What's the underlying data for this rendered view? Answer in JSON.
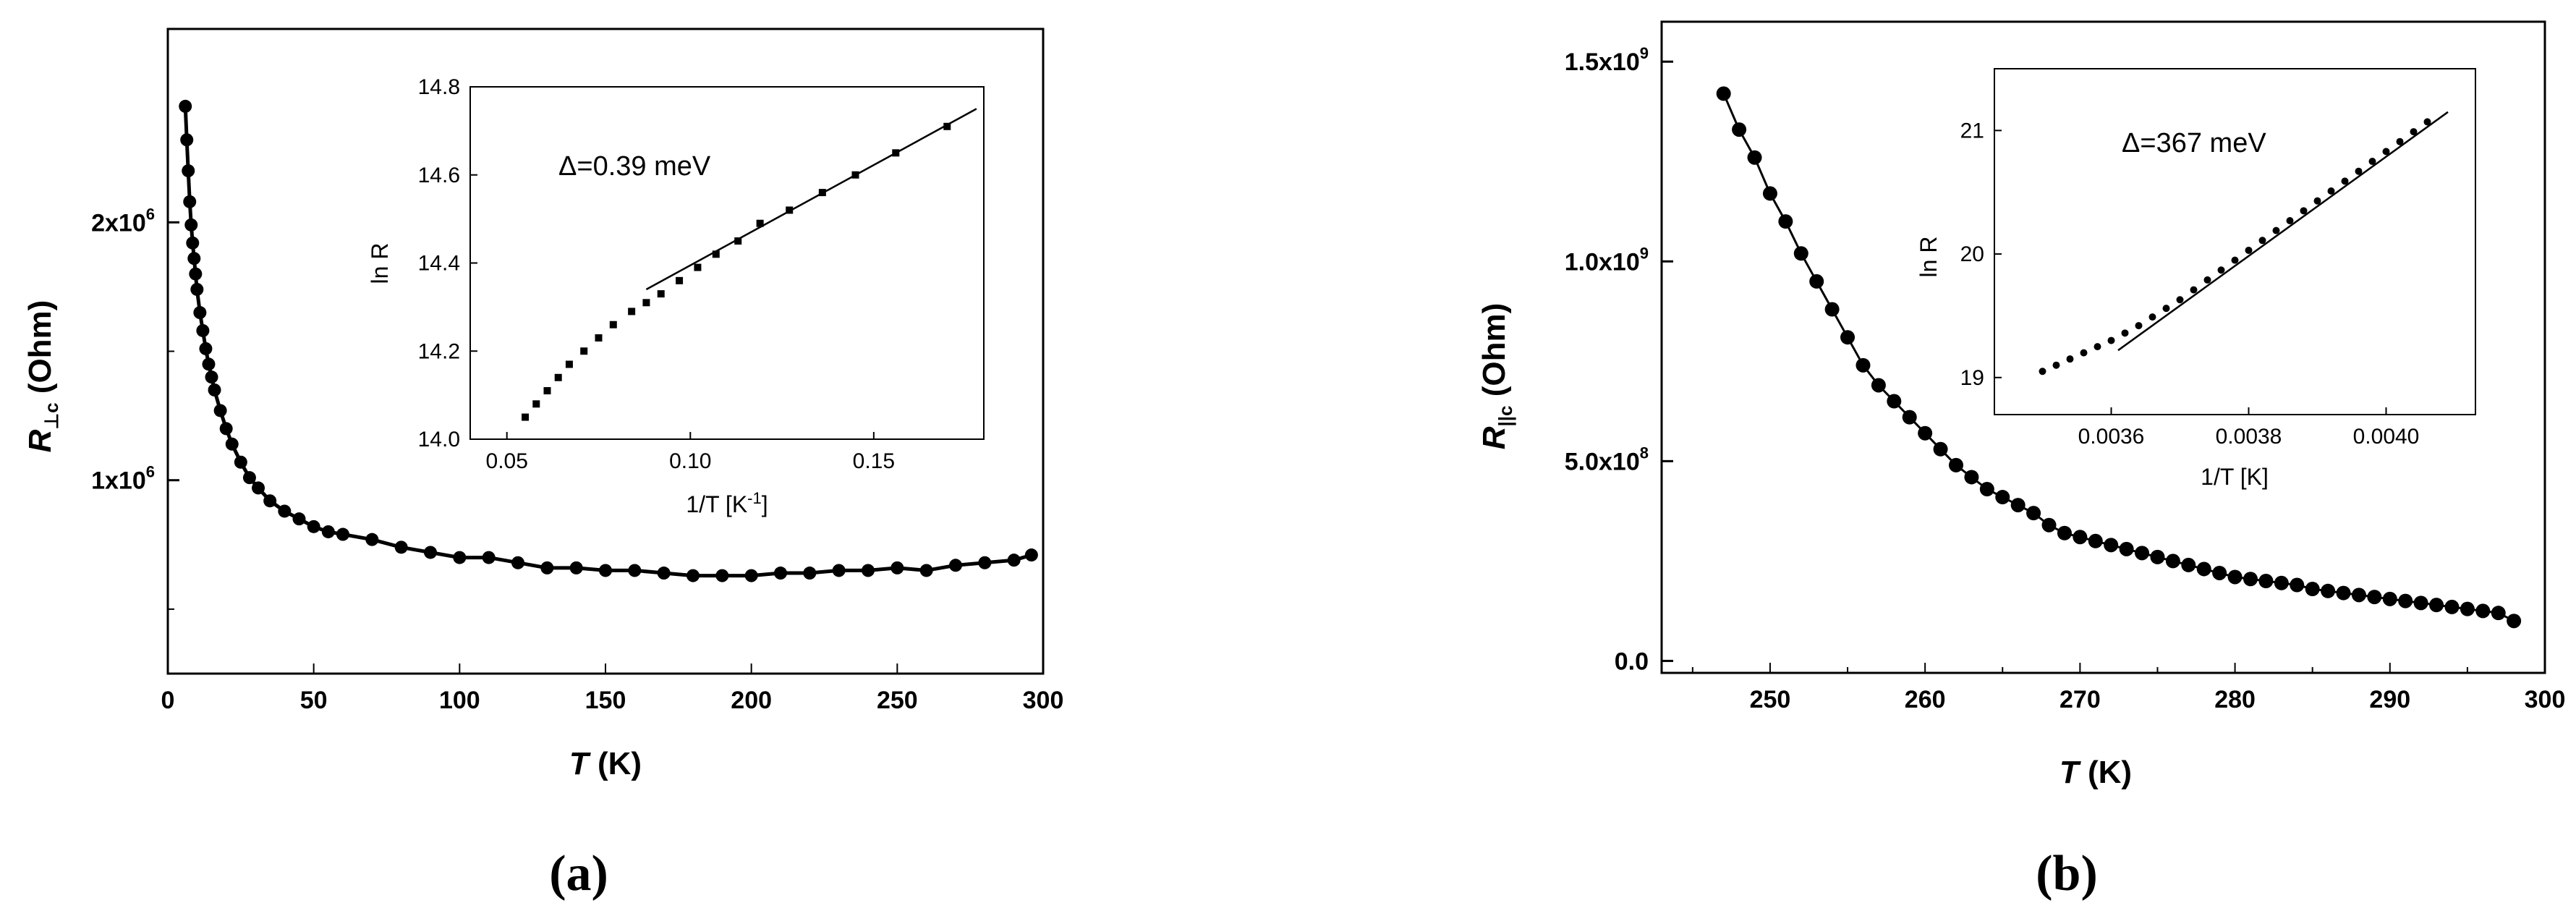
{
  "panels": [
    {
      "label": "(a)",
      "main": {
        "xlabel_italic": "T",
        "xlabel_rest": " (K)",
        "ylabel_symbol": "R",
        "ylabel_subscript": "⊥c",
        "ylabel_rest": " (Ohm)",
        "xlim": [
          0,
          300
        ],
        "ylim": [
          250000,
          2750000
        ],
        "xticks": [
          {
            "v": 0,
            "t": "0"
          },
          {
            "v": 50,
            "t": "50"
          },
          {
            "v": 100,
            "t": "100"
          },
          {
            "v": 150,
            "t": "150"
          },
          {
            "v": 200,
            "t": "200"
          },
          {
            "v": 250,
            "t": "250"
          },
          {
            "v": 300,
            "t": "300"
          }
        ],
        "yticks": [
          {
            "v": 1000000,
            "base": "1x10",
            "exp": "6"
          },
          {
            "v": 2000000,
            "base": "2x10",
            "exp": "6"
          }
        ],
        "yminor": [
          500000,
          1500000
        ]
      },
      "inset": {
        "xlabel": "1/T [K",
        "xlabel_sup": "-1",
        "xlabel_close": "]",
        "ylabel": "ln R",
        "xlim": [
          0.04,
          0.18
        ],
        "ylim": [
          14.0,
          14.8
        ],
        "xticks": [
          {
            "v": 0.05,
            "t": "0.05"
          },
          {
            "v": 0.1,
            "t": "0.10"
          },
          {
            "v": 0.15,
            "t": "0.15"
          }
        ],
        "yticks": [
          {
            "v": 14.0,
            "t": "14.0"
          },
          {
            "v": 14.2,
            "t": "14.2"
          },
          {
            "v": 14.4,
            "t": "14.4"
          },
          {
            "v": 14.6,
            "t": "14.6"
          },
          {
            "v": 14.8,
            "t": "14.8"
          }
        ],
        "annotation": "Δ=0.39  meV"
      }
    },
    {
      "label": "(b)",
      "main": {
        "xlabel_italic": "T",
        "xlabel_rest": " (K)",
        "ylabel_symbol": "R",
        "ylabel_subscript": "||c",
        "ylabel_rest": " (Ohm)",
        "xlim": [
          243,
          300
        ],
        "ylim": [
          -30000000,
          1600000000
        ],
        "xticks": [
          {
            "v": 250,
            "t": "250"
          },
          {
            "v": 260,
            "t": "260"
          },
          {
            "v": 270,
            "t": "270"
          },
          {
            "v": 280,
            "t": "280"
          },
          {
            "v": 290,
            "t": "290"
          },
          {
            "v": 300,
            "t": "300"
          }
        ],
        "yticks": [
          {
            "v": 0,
            "base": "0.0",
            "exp": ""
          },
          {
            "v": 500000000,
            "base": "5.0x10",
            "exp": "8"
          },
          {
            "v": 1000000000,
            "base": "1.0x10",
            "exp": "9"
          },
          {
            "v": 1500000000,
            "base": "1.5x10",
            "exp": "9"
          }
        ]
      },
      "inset": {
        "xlabel": "1/T [K]",
        "ylabel": "ln R",
        "xlim": [
          0.00343,
          0.00413
        ],
        "ylim": [
          18.7,
          21.5
        ],
        "xticks": [
          {
            "v": 0.0036,
            "t": "0.0036"
          },
          {
            "v": 0.0038,
            "t": "0.0038"
          },
          {
            "v": 0.004,
            "t": "0.0040"
          }
        ],
        "yticks": [
          {
            "v": 19,
            "t": "19"
          },
          {
            "v": 20,
            "t": "20"
          },
          {
            "v": 21,
            "t": "21"
          }
        ],
        "annotation": "Δ=367 meV"
      }
    }
  ],
  "chart_data": [
    {
      "type": "scatter",
      "panel": "(a)",
      "xlabel": "T (K)",
      "ylabel": "R⊥c (Ohm)",
      "series": [
        {
          "x": [
            6,
            6.5,
            7,
            7.5,
            8,
            8.5,
            9,
            9.5,
            10,
            11,
            12,
            13,
            14,
            15,
            16,
            18,
            20,
            22,
            25,
            28,
            31,
            35,
            40,
            45,
            50,
            55,
            60,
            70,
            80,
            90,
            100,
            110,
            120,
            130,
            140,
            150,
            160,
            170,
            180,
            190,
            200,
            210,
            220,
            230,
            240,
            250,
            260,
            270,
            280,
            290,
            296
          ],
          "y": [
            2450000,
            2320000,
            2200000,
            2080000,
            1990000,
            1920000,
            1860000,
            1800000,
            1740000,
            1650000,
            1580000,
            1510000,
            1450000,
            1400000,
            1350000,
            1270000,
            1200000,
            1140000,
            1070000,
            1010000,
            970000,
            920000,
            880000,
            850000,
            820000,
            800000,
            790000,
            770000,
            740000,
            720000,
            700000,
            700000,
            680000,
            660000,
            660000,
            650000,
            650000,
            640000,
            630000,
            630000,
            630000,
            640000,
            640000,
            650000,
            650000,
            660000,
            650000,
            670000,
            680000,
            690000,
            710000
          ]
        }
      ],
      "inset": {
        "type": "scatter",
        "xlabel": "1/T [K-1]",
        "ylabel": "ln R",
        "points": {
          "x": [
            0.055,
            0.058,
            0.061,
            0.064,
            0.067,
            0.071,
            0.075,
            0.079,
            0.084,
            0.088,
            0.092,
            0.097,
            0.102,
            0.107,
            0.113,
            0.119,
            0.127,
            0.136,
            0.145,
            0.156,
            0.17
          ],
          "y": [
            14.05,
            14.08,
            14.11,
            14.14,
            14.17,
            14.2,
            14.23,
            14.26,
            14.29,
            14.31,
            14.33,
            14.36,
            14.39,
            14.42,
            14.45,
            14.49,
            14.52,
            14.56,
            14.6,
            14.65,
            14.71
          ]
        },
        "fit_line": {
          "x": [
            0.088,
            0.178
          ],
          "y": [
            14.34,
            14.75
          ]
        }
      }
    },
    {
      "type": "line",
      "panel": "(b)",
      "xlabel": "T (K)",
      "ylabel": "R||c (Ohm)",
      "series": [
        {
          "x": [
            247,
            248,
            249,
            250,
            251,
            252,
            253,
            254,
            255,
            256,
            257,
            258,
            259,
            260,
            261,
            262,
            263,
            264,
            265,
            266,
            267,
            268,
            269,
            270,
            271,
            272,
            273,
            274,
            275,
            276,
            277,
            278,
            279,
            280,
            281,
            282,
            283,
            284,
            285,
            286,
            287,
            288,
            289,
            290,
            291,
            292,
            293,
            294,
            295,
            296,
            297,
            298
          ],
          "y": [
            1420000000,
            1330000000,
            1260000000,
            1170000000,
            1100000000,
            1020000000,
            950000000,
            880000000,
            810000000,
            740000000,
            690000000,
            650000000,
            610000000,
            570000000,
            530000000,
            490000000,
            460000000,
            430000000,
            410000000,
            390000000,
            370000000,
            340000000,
            320000000,
            310000000,
            300000000,
            290000000,
            280000000,
            270000000,
            260000000,
            250000000,
            240000000,
            230000000,
            220000000,
            210000000,
            205000000,
            200000000,
            195000000,
            190000000,
            180000000,
            175000000,
            170000000,
            165000000,
            160000000,
            155000000,
            150000000,
            145000000,
            140000000,
            135000000,
            130000000,
            125000000,
            120000000,
            100000000
          ]
        }
      ],
      "inset": {
        "type": "scatter",
        "xlabel": "1/T [K]",
        "ylabel": "ln R",
        "points": {
          "x": [
            0.0035,
            0.00352,
            0.00354,
            0.00356,
            0.00358,
            0.0036,
            0.00362,
            0.00364,
            0.00366,
            0.00368,
            0.0037,
            0.00372,
            0.00374,
            0.00376,
            0.00378,
            0.0038,
            0.00382,
            0.00384,
            0.00386,
            0.00388,
            0.0039,
            0.00392,
            0.00394,
            0.00396,
            0.00398,
            0.004,
            0.00402,
            0.00404,
            0.00406
          ],
          "y": [
            19.05,
            19.1,
            19.15,
            19.2,
            19.25,
            19.3,
            19.36,
            19.42,
            19.49,
            19.56,
            19.63,
            19.71,
            19.79,
            19.87,
            19.95,
            20.03,
            20.11,
            20.19,
            20.27,
            20.35,
            20.43,
            20.51,
            20.59,
            20.67,
            20.75,
            20.83,
            20.91,
            20.99,
            21.07
          ]
        },
        "fit_line": {
          "x": [
            0.00361,
            0.00409
          ],
          "y": [
            19.22,
            21.15
          ]
        }
      }
    }
  ]
}
